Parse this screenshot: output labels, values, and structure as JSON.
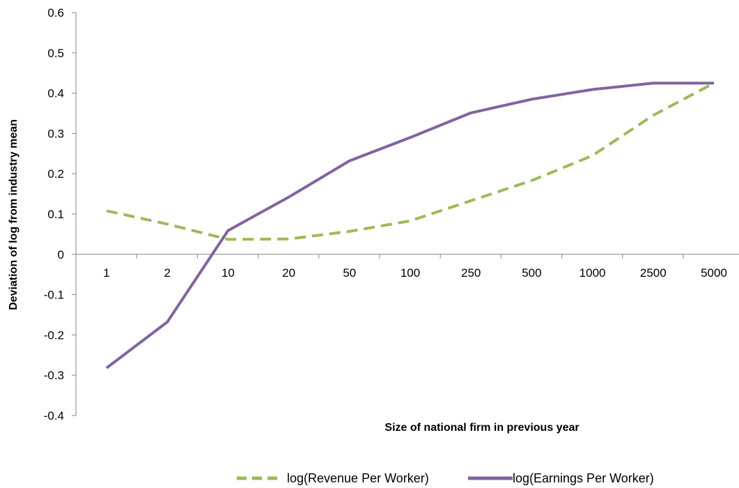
{
  "chart_data": {
    "type": "line",
    "categories": [
      "1",
      "2",
      "10",
      "20",
      "50",
      "100",
      "250",
      "500",
      "1000",
      "2500",
      "5000"
    ],
    "series": [
      {
        "name": "log(Revenue Per Worker)",
        "color": "#9BBB59",
        "dash": "dashed",
        "values": [
          0.108,
          0.075,
          0.037,
          0.038,
          0.057,
          0.083,
          0.133,
          0.183,
          0.245,
          0.345,
          0.425
        ]
      },
      {
        "name": "log(Earnings Per Worker)",
        "color": "#8064A2",
        "dash": "solid",
        "values": [
          -0.282,
          -0.168,
          0.059,
          0.142,
          0.232,
          0.29,
          0.351,
          0.385,
          0.409,
          0.425,
          0.425
        ]
      }
    ],
    "xlabel": "Size of national firm in previous year",
    "ylabel": "Deviation of log from industry mean",
    "ylim": [
      -0.4,
      0.6
    ],
    "yticks": [
      "-0.4",
      "-0.3",
      "-0.2",
      "-0.1",
      "0",
      "0.1",
      "0.2",
      "0.3",
      "0.4",
      "0.5",
      "0.6"
    ],
    "grid": false,
    "legend": "bottom"
  }
}
